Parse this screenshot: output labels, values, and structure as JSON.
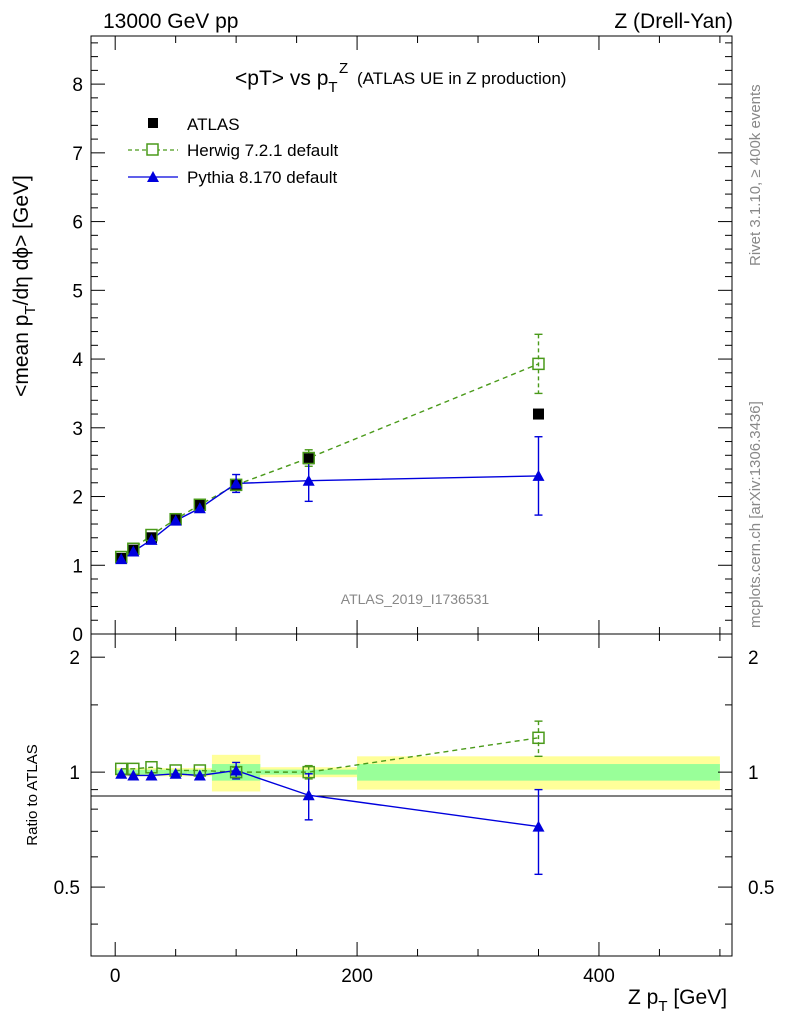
{
  "header": {
    "left": "13000 GeV pp",
    "right": "Z (Drell-Yan)"
  },
  "side_labels": {
    "rivet": "Rivet 3.1.10, ≥ 400k events",
    "mcplots": "mcplots.cern.ch [arXiv:1306.3436]"
  },
  "watermark": "ATLAS_2019_I1736531",
  "chart_data": {
    "type": "line",
    "title": "<pT> vs p",
    "title_sub": "T",
    "title_sup": "Z",
    "title_note": "(ATLAS UE in Z production)",
    "ylabel": "<mean p",
    "ylabel_sub": "T",
    "ylabel_rest": "/dη dϕ> [GeV]",
    "xlabel": "Z p",
    "xlabel_sub": "T",
    "xlabel_rest": " [GeV]",
    "ratio_ylabel": "Ratio to ATLAS",
    "xlim": [
      -20,
      510
    ],
    "ylim": [
      0,
      8.7
    ],
    "ratio_ylim": [
      0.33,
      2.3
    ],
    "x_ticks": [
      "0",
      "200",
      "400"
    ],
    "x_tick_values": [
      0,
      200,
      400
    ],
    "y_ticks": [
      "0",
      "1",
      "2",
      "3",
      "4",
      "5",
      "6",
      "7",
      "8"
    ],
    "y_tick_values": [
      0,
      1,
      2,
      3,
      4,
      5,
      6,
      7,
      8
    ],
    "ratio_ticks": [
      "0.5",
      "1",
      "2"
    ],
    "ratio_tick_values": [
      0.5,
      1,
      2
    ],
    "bins": [
      [
        0,
        10
      ],
      [
        10,
        20
      ],
      [
        20,
        40
      ],
      [
        40,
        60
      ],
      [
        60,
        80
      ],
      [
        80,
        120
      ],
      [
        120,
        200
      ],
      [
        200,
        500
      ]
    ],
    "series": [
      {
        "name": "ATLAS",
        "x": [
          5,
          15,
          30,
          50,
          70,
          100,
          160,
          350
        ],
        "values": [
          1.1,
          1.22,
          1.4,
          1.66,
          1.87,
          2.16,
          2.55,
          3.2
        ],
        "color": "#000000"
      },
      {
        "name": "Herwig 7.2.1 default",
        "x": [
          5,
          15,
          30,
          50,
          70,
          100,
          160,
          350
        ],
        "values": [
          1.12,
          1.24,
          1.44,
          1.67,
          1.88,
          2.17,
          2.56,
          3.93
        ],
        "errors": [
          0.02,
          0.02,
          0.03,
          0.03,
          0.04,
          0.06,
          0.12,
          0.43
        ],
        "color": "#4a9a1a"
      },
      {
        "name": "Pythia 8.170 default",
        "x": [
          5,
          15,
          30,
          50,
          70,
          100,
          160,
          350
        ],
        "values": [
          1.09,
          1.2,
          1.37,
          1.65,
          1.83,
          2.19,
          2.23,
          2.3
        ],
        "errors": [
          0.02,
          0.02,
          0.03,
          0.03,
          0.05,
          0.13,
          0.3,
          0.57
        ],
        "color": "#0000dd"
      }
    ],
    "ratio_series": [
      {
        "name": "Herwig 7.2.1 default",
        "values": [
          1.02,
          1.02,
          1.03,
          1.01,
          1.01,
          1.0,
          1.0,
          1.23
        ],
        "errors": [
          0.01,
          0.01,
          0.01,
          0.01,
          0.02,
          0.03,
          0.04,
          0.13
        ]
      },
      {
        "name": "Pythia 8.170 default",
        "values": [
          0.99,
          0.98,
          0.98,
          0.99,
          0.98,
          1.01,
          0.87,
          0.72
        ],
        "errors": [
          0.01,
          0.01,
          0.01,
          0.01,
          0.02,
          0.05,
          0.12,
          0.18
        ]
      }
    ],
    "ratio_bands": {
      "inner": [
        0.015,
        0.015,
        0.015,
        0.015,
        0.015,
        0.05,
        0.015,
        0.05
      ],
      "outer": [
        0.025,
        0.025,
        0.025,
        0.025,
        0.025,
        0.11,
        0.03,
        0.1
      ]
    },
    "legend_position": "top-left"
  }
}
